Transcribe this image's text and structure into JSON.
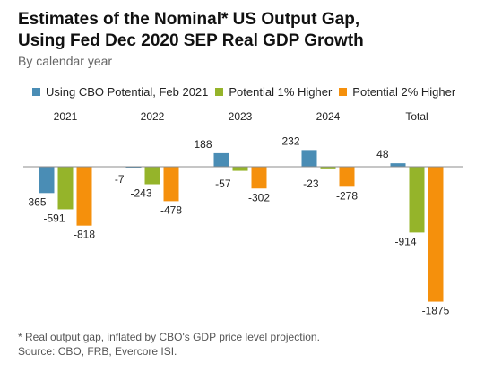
{
  "colors": {
    "series_0": "#4a8db5",
    "series_1": "#95b42a",
    "series_2": "#f5900c",
    "axis": "#8c8c8c"
  },
  "chart_data": {
    "type": "bar",
    "title_line1": "Estimates of the Nominal* US Output Gap,",
    "title_line2": "Using Fed Dec 2020 SEP Real GDP Growth",
    "subtitle": "By calendar year",
    "categories": [
      "2021",
      "2022",
      "2023",
      "2024",
      "Total"
    ],
    "series": [
      {
        "name": "Using CBO Potential, Feb 2021",
        "values": [
          -365,
          -7,
          188,
          232,
          48
        ]
      },
      {
        "name": "Potential 1% Higher",
        "values": [
          -591,
          -243,
          -57,
          -23,
          -914
        ]
      },
      {
        "name": "Potential 2% Higher",
        "values": [
          -818,
          -478,
          -302,
          -278,
          -1875
        ]
      }
    ],
    "value_labels": [
      [
        "-365",
        "-7",
        "188",
        "232",
        "48"
      ],
      [
        "-591",
        "-243",
        "-57",
        "-23",
        "-914"
      ],
      [
        "-818",
        "-478",
        "-302",
        "-278",
        "-1875"
      ]
    ],
    "ylim": [
      -1875,
      232
    ],
    "legend_position": "top",
    "grid": false
  },
  "footnote": {
    "line1": "* Real output gap, inflated by CBO's GDP price level projection.",
    "line2": "Source: CBO, FRB, Evercore ISI."
  }
}
